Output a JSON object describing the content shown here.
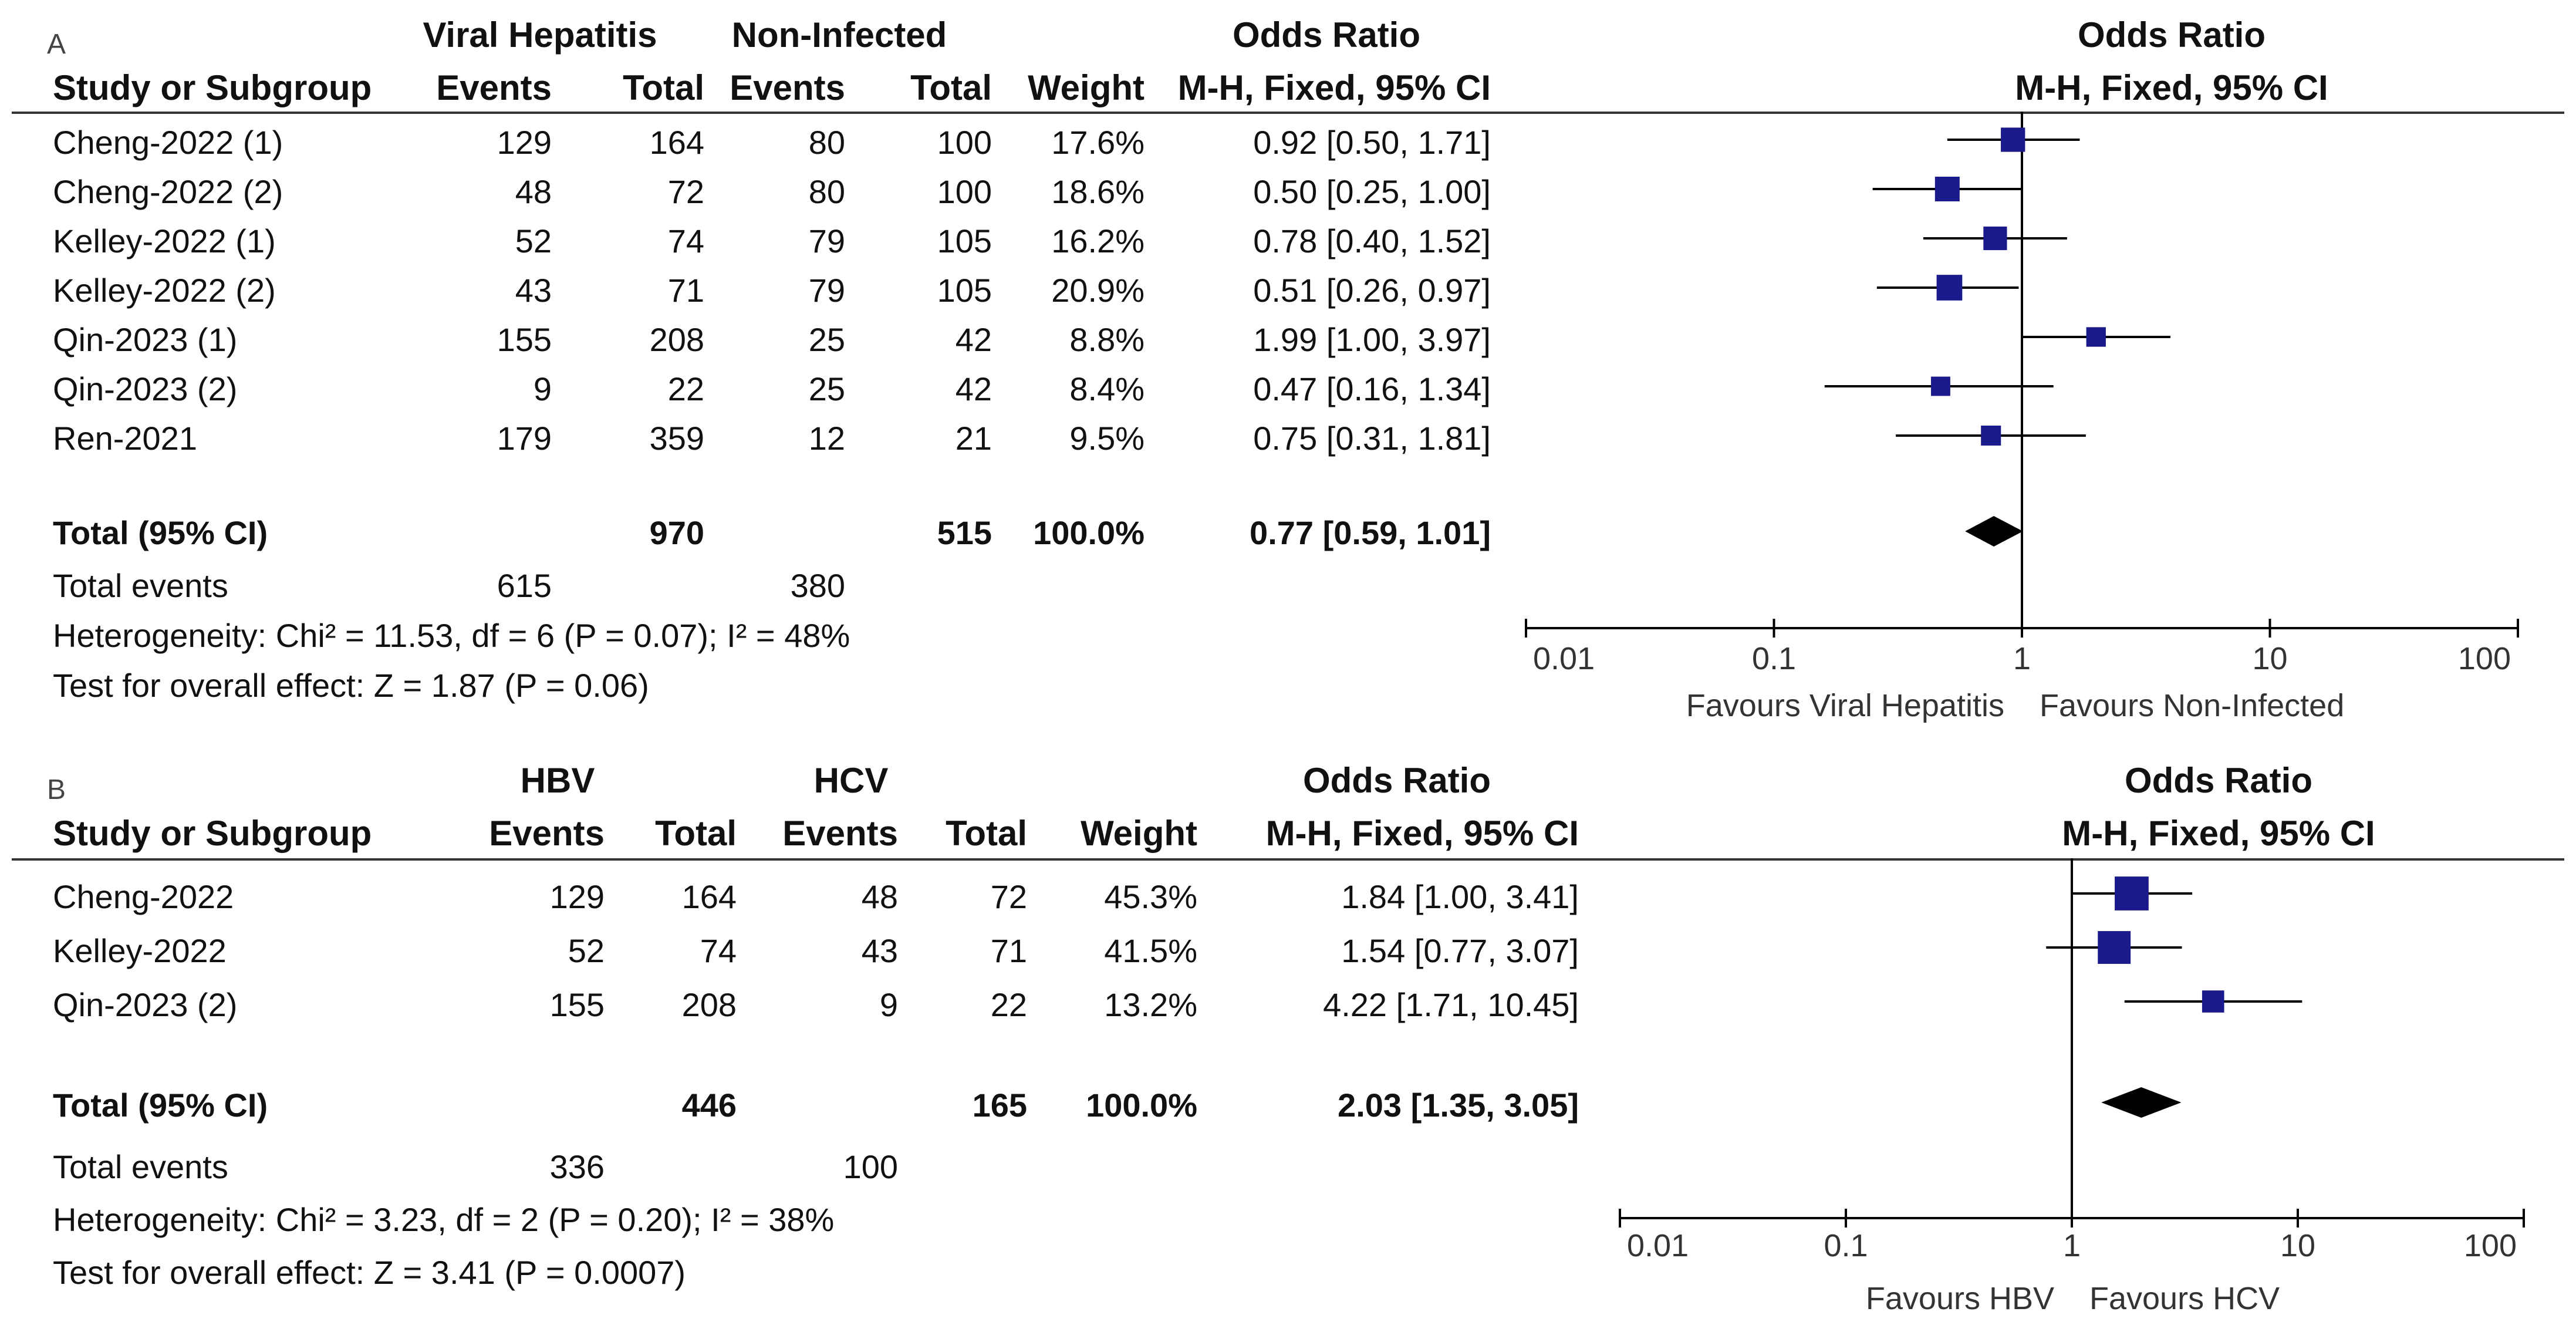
{
  "chart_data": [
    {
      "type": "forest",
      "panel_label": "A",
      "group1": "Viral Hepatitis",
      "group2": "Non-Infected",
      "header_left": "Study or Subgroup",
      "header_events": "Events",
      "header_total": "Total",
      "header_weight": "Weight",
      "header_or": "Odds Ratio",
      "header_method": "M-H, Fixed, 95% CI",
      "plot_title": "Odds Ratio",
      "plot_method": "M-H, Fixed, 95% CI",
      "studies": [
        {
          "name": "Cheng-2022 (1)",
          "e1": "129",
          "t1": "164",
          "e2": "80",
          "t2": "100",
          "weight": "17.6%",
          "ci_text": "0.92 [0.50, 1.71]",
          "or": 0.92,
          "lo": 0.5,
          "hi": 1.71,
          "w": 17.6
        },
        {
          "name": "Cheng-2022 (2)",
          "e1": "48",
          "t1": "72",
          "e2": "80",
          "t2": "100",
          "weight": "18.6%",
          "ci_text": "0.50 [0.25, 1.00]",
          "or": 0.5,
          "lo": 0.25,
          "hi": 1.0,
          "w": 18.6
        },
        {
          "name": "Kelley-2022 (1)",
          "e1": "52",
          "t1": "74",
          "e2": "79",
          "t2": "105",
          "weight": "16.2%",
          "ci_text": "0.78 [0.40, 1.52]",
          "or": 0.78,
          "lo": 0.4,
          "hi": 1.52,
          "w": 16.2
        },
        {
          "name": "Kelley-2022 (2)",
          "e1": "43",
          "t1": "71",
          "e2": "79",
          "t2": "105",
          "weight": "20.9%",
          "ci_text": "0.51 [0.26, 0.97]",
          "or": 0.51,
          "lo": 0.26,
          "hi": 0.97,
          "w": 20.9
        },
        {
          "name": "Qin-2023 (1)",
          "e1": "155",
          "t1": "208",
          "e2": "25",
          "t2": "42",
          "weight": "8.8%",
          "ci_text": "1.99 [1.00, 3.97]",
          "or": 1.99,
          "lo": 1.0,
          "hi": 3.97,
          "w": 8.8
        },
        {
          "name": "Qin-2023 (2)",
          "e1": "9",
          "t1": "22",
          "e2": "25",
          "t2": "42",
          "weight": "8.4%",
          "ci_text": "0.47 [0.16, 1.34]",
          "or": 0.47,
          "lo": 0.16,
          "hi": 1.34,
          "w": 8.4
        },
        {
          "name": "Ren-2021",
          "e1": "179",
          "t1": "359",
          "e2": "12",
          "t2": "21",
          "weight": "9.5%",
          "ci_text": "0.75 [0.31, 1.81]",
          "or": 0.75,
          "lo": 0.31,
          "hi": 1.81,
          "w": 9.5
        }
      ],
      "total": {
        "name": "Total (95% CI)",
        "t1": "970",
        "t2": "515",
        "weight": "100.0%",
        "ci_text": "0.77 [0.59, 1.01]",
        "or": 0.77,
        "lo": 0.59,
        "hi": 1.01
      },
      "total_events_label": "Total events",
      "total_events_1": "615",
      "total_events_2": "380",
      "heterogeneity": "Heterogeneity: Chi² = 11.53, df = 6 (P = 0.07); I² = 48%",
      "overall_effect": "Test for overall effect: Z = 1.87 (P = 0.06)",
      "axis_ticks": [
        "0.01",
        "0.1",
        "1",
        "10",
        "100"
      ],
      "tick_values": [
        0.01,
        0.1,
        1,
        10,
        100
      ],
      "xlim": [
        0.01,
        100
      ],
      "favours_left": "Favours Viral Hepatitis",
      "favours_right": "Favours Non-Infected"
    },
    {
      "type": "forest",
      "panel_label": "B",
      "group1": "HBV",
      "group2": "HCV",
      "header_left": "Study or Subgroup",
      "header_events": "Events",
      "header_total": "Total",
      "header_weight": "Weight",
      "header_or": "Odds Ratio",
      "header_method": "M-H, Fixed, 95% CI",
      "plot_title": "Odds Ratio",
      "plot_method": "M-H, Fixed, 95% CI",
      "studies": [
        {
          "name": "Cheng-2022",
          "e1": "129",
          "t1": "164",
          "e2": "48",
          "t2": "72",
          "weight": "45.3%",
          "ci_text": "1.84 [1.00, 3.41]",
          "or": 1.84,
          "lo": 1.0,
          "hi": 3.41,
          "w": 45.3
        },
        {
          "name": "Kelley-2022",
          "e1": "52",
          "t1": "74",
          "e2": "43",
          "t2": "71",
          "weight": "41.5%",
          "ci_text": "1.54 [0.77, 3.07]",
          "or": 1.54,
          "lo": 0.77,
          "hi": 3.07,
          "w": 41.5
        },
        {
          "name": "Qin-2023 (2)",
          "e1": "155",
          "t1": "208",
          "e2": "9",
          "t2": "22",
          "weight": "13.2%",
          "ci_text": "4.22 [1.71, 10.45]",
          "or": 4.22,
          "lo": 1.71,
          "hi": 10.45,
          "w": 13.2
        }
      ],
      "total": {
        "name": "Total (95% CI)",
        "t1": "446",
        "t2": "165",
        "weight": "100.0%",
        "ci_text": "2.03 [1.35, 3.05]",
        "or": 2.03,
        "lo": 1.35,
        "hi": 3.05
      },
      "total_events_label": "Total events",
      "total_events_1": "336",
      "total_events_2": "100",
      "heterogeneity": "Heterogeneity: Chi² = 3.23, df = 2 (P = 0.20); I² = 38%",
      "overall_effect": "Test for overall effect: Z = 3.41 (P = 0.0007)",
      "axis_ticks": [
        "0.01",
        "0.1",
        "1",
        "10",
        "100"
      ],
      "tick_values": [
        0.01,
        0.1,
        1,
        10,
        100
      ],
      "xlim": [
        0.01,
        100
      ],
      "favours_left": "Favours HBV",
      "favours_right": "Favours HCV"
    }
  ],
  "colors": {
    "marker": "#1a1a8c",
    "diamond": "#000000",
    "line": "#000000",
    "rule": "#333333"
  }
}
